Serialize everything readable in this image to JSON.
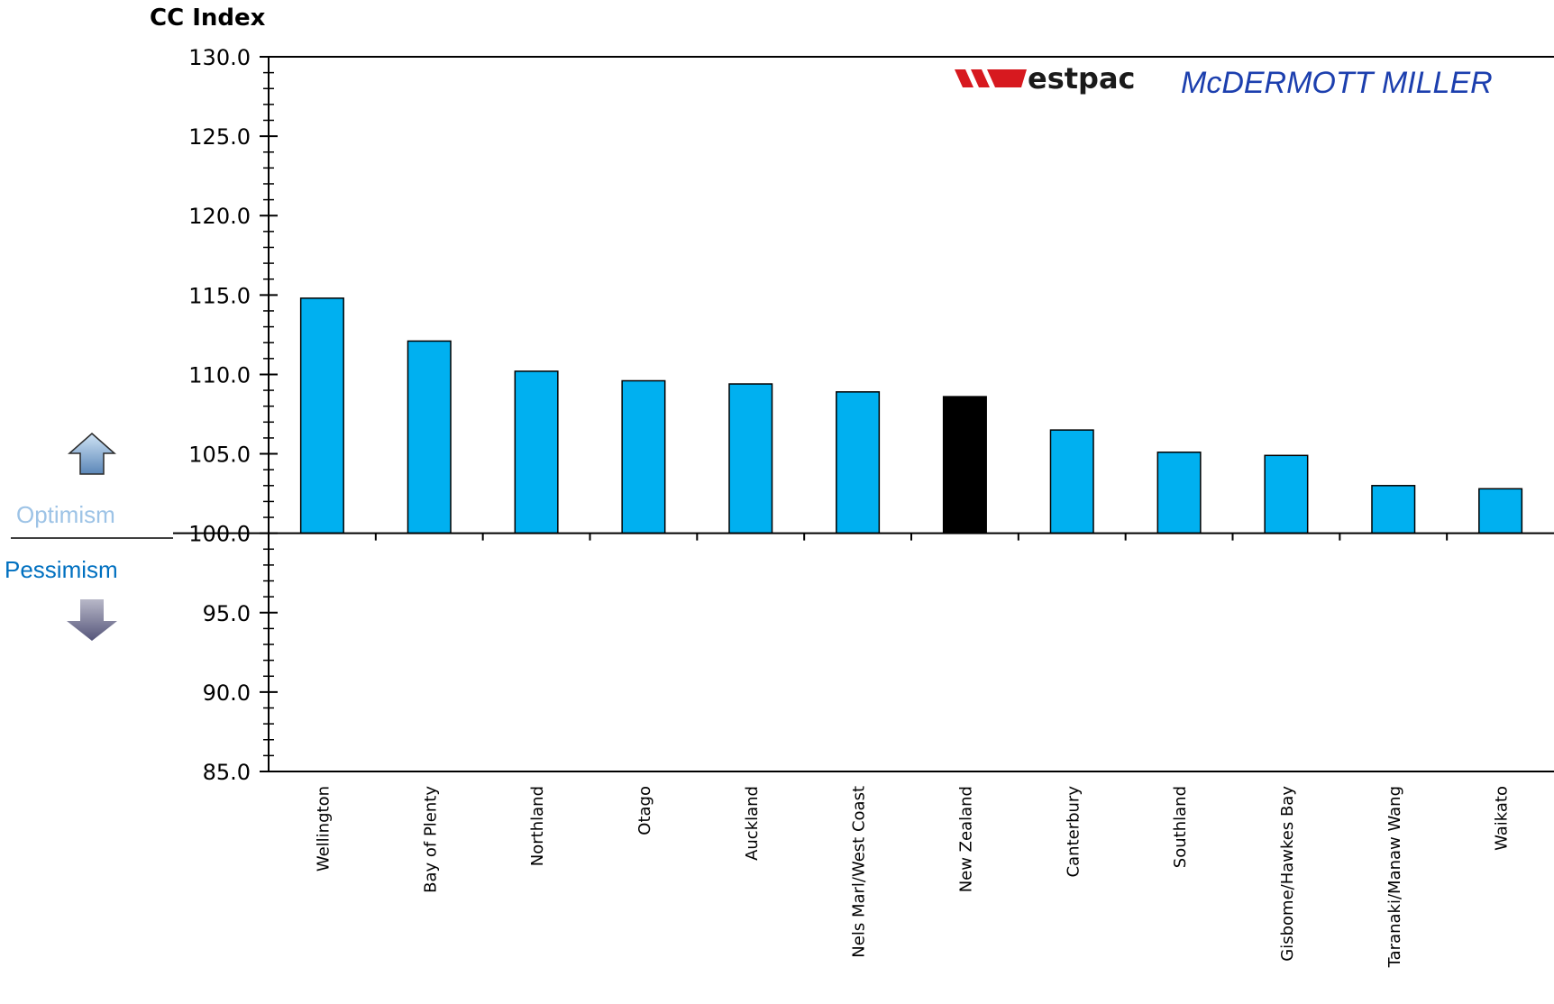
{
  "chart_data": {
    "type": "bar",
    "ylabel": "CC Index",
    "ylim": [
      85.0,
      130.0
    ],
    "ytick_step": 5.0,
    "ytick_labels": [
      "130.0",
      "125.0",
      "120.0",
      "115.0",
      "110.0",
      "105.0",
      "100.0",
      "95.0",
      "90.0",
      "85.0"
    ],
    "baseline": 100.0,
    "categories": [
      "Wellington",
      "Bay of Plenty",
      "Northland",
      "Otago",
      "Auckland",
      "Nels Marl/West Coast",
      "New Zealand",
      "Canterbury",
      "Southland",
      "Gisbome/Hawkes Bay",
      "Taranaki/Manaw Wang",
      "Waikato"
    ],
    "values": [
      114.8,
      112.1,
      110.2,
      109.6,
      109.4,
      108.9,
      108.6,
      106.5,
      105.1,
      104.9,
      103.0,
      102.8
    ],
    "highlight_category": "New Zealand",
    "colors": {
      "bar": "#00b0f0",
      "highlight": "#000000",
      "optimism": "#9dc3e6",
      "pessimism": "#0070c0"
    },
    "grid": false,
    "legend": "none"
  },
  "annotations": {
    "optimism": "Optimism",
    "pessimism": "Pessimism",
    "up_arrow_icon": "up-arrow-icon",
    "down_arrow_icon": "down-arrow-icon"
  },
  "logo": {
    "brand1": "estpac",
    "brand2": "McDERMOTT MILLER"
  }
}
